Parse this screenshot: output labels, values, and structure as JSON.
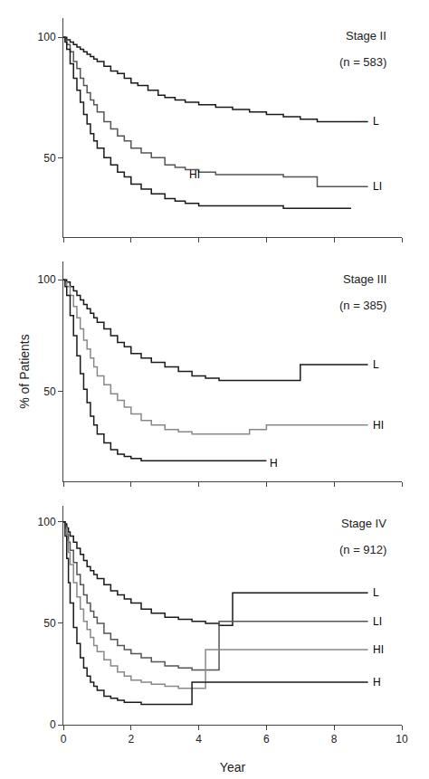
{
  "chart_data": [
    {
      "type": "line",
      "title": "Stage II",
      "subtitle": "(n = 583)",
      "line_style": "step",
      "series": [
        {
          "name": "L",
          "color": "#1a1a1a",
          "x": [
            0,
            0.05,
            0.1,
            0.2,
            0.3,
            0.4,
            0.5,
            0.6,
            0.7,
            0.8,
            0.9,
            1.0,
            1.2,
            1.4,
            1.6,
            1.8,
            2.0,
            2.2,
            2.5,
            2.8,
            3.0,
            3.3,
            3.6,
            4.0,
            4.5,
            5.0,
            5.5,
            6.0,
            6.5,
            7.0,
            7.5,
            8.0,
            8.5,
            9.0
          ],
          "values": [
            100,
            100,
            99,
            98,
            97,
            96,
            95,
            94,
            93,
            92,
            91,
            90,
            88,
            86,
            85,
            83,
            81,
            80,
            78,
            76,
            75,
            74,
            73,
            72,
            71,
            70,
            69,
            68,
            67,
            66,
            65,
            65,
            65,
            65
          ]
        },
        {
          "name": "LI",
          "color": "#555555",
          "x": [
            0,
            0.05,
            0.1,
            0.2,
            0.3,
            0.4,
            0.5,
            0.6,
            0.7,
            0.8,
            0.9,
            1.0,
            1.2,
            1.4,
            1.6,
            1.8,
            2.0,
            2.3,
            2.6,
            3.0,
            3.3,
            3.6,
            4.0,
            4.5,
            5.0,
            5.5,
            6.0,
            6.5,
            7.0,
            7.5,
            8.0,
            8.5,
            9.0
          ],
          "values": [
            100,
            99,
            97,
            94,
            90,
            87,
            83,
            80,
            77,
            74,
            72,
            69,
            65,
            62,
            59,
            57,
            54,
            52,
            50,
            47,
            46,
            45,
            44,
            43,
            43,
            43,
            43,
            42,
            42,
            38,
            38,
            38,
            38
          ]
        },
        {
          "name": "HI",
          "color": "#1a1a1a",
          "x": [
            0,
            0.05,
            0.1,
            0.2,
            0.3,
            0.4,
            0.5,
            0.6,
            0.7,
            0.8,
            0.9,
            1.0,
            1.2,
            1.4,
            1.6,
            1.8,
            2.0,
            2.3,
            2.6,
            3.0,
            3.3,
            3.6,
            4.0,
            4.5,
            5.0,
            5.5,
            6.0,
            6.5,
            7.0,
            7.5,
            8.0,
            8.5
          ],
          "values": [
            100,
            98,
            95,
            89,
            83,
            78,
            73,
            68,
            64,
            60,
            57,
            54,
            50,
            47,
            44,
            42,
            39,
            37,
            35,
            33,
            32,
            31,
            30,
            30,
            30,
            30,
            30,
            29,
            29,
            29,
            29,
            29
          ]
        }
      ],
      "annotations": [
        {
          "text": "L",
          "x": 9.1,
          "y": 65
        },
        {
          "text": "LI",
          "x": 9.1,
          "y": 38
        },
        {
          "text": "HI",
          "x": 3.65,
          "y": 43
        }
      ],
      "xlim": [
        0,
        10
      ],
      "xticks": [
        0,
        2,
        4,
        6,
        8,
        10
      ],
      "ylim": [
        17,
        108
      ],
      "yticks": [
        50,
        100
      ],
      "grid": false,
      "tick_labels": "y"
    },
    {
      "type": "line",
      "title": "Stage III",
      "subtitle": "(n = 385)",
      "line_style": "step",
      "ylabel": "% of Patients",
      "series": [
        {
          "name": "L",
          "color": "#1a1a1a",
          "x": [
            0,
            0.05,
            0.1,
            0.2,
            0.3,
            0.4,
            0.5,
            0.6,
            0.7,
            0.8,
            0.9,
            1.0,
            1.2,
            1.4,
            1.6,
            1.8,
            2.0,
            2.3,
            2.6,
            3.0,
            3.4,
            3.8,
            4.2,
            4.6,
            5.0,
            5.5,
            6.0,
            6.5,
            7.0,
            7.5,
            8.0,
            8.5,
            9.0
          ],
          "values": [
            100,
            100,
            99,
            97,
            95,
            93,
            91,
            89,
            87,
            85,
            83,
            81,
            78,
            75,
            72,
            70,
            67,
            65,
            63,
            61,
            59,
            57,
            56,
            55,
            55,
            55,
            55,
            55,
            62,
            62,
            62,
            62,
            62
          ]
        },
        {
          "name": "HI",
          "color": "#888888",
          "x": [
            0,
            0.05,
            0.1,
            0.2,
            0.3,
            0.4,
            0.5,
            0.6,
            0.7,
            0.8,
            0.9,
            1.0,
            1.2,
            1.4,
            1.6,
            1.8,
            2.0,
            2.3,
            2.6,
            3.0,
            3.4,
            3.8,
            4.2,
            4.6,
            5.0,
            5.5,
            6.0,
            6.5,
            7.0,
            7.5,
            8.0,
            8.5,
            9.0
          ],
          "values": [
            100,
            99,
            97,
            93,
            88,
            83,
            78,
            73,
            69,
            65,
            61,
            57,
            53,
            49,
            46,
            43,
            40,
            37,
            35,
            33,
            32,
            31,
            31,
            31,
            31,
            33,
            35,
            35,
            35,
            35,
            35,
            35,
            35
          ]
        },
        {
          "name": "H",
          "color": "#1a1a1a",
          "x": [
            0,
            0.05,
            0.1,
            0.2,
            0.3,
            0.4,
            0.5,
            0.6,
            0.7,
            0.8,
            0.9,
            1.0,
            1.2,
            1.4,
            1.6,
            1.8,
            2.0,
            2.3,
            2.6,
            3.0,
            3.4,
            3.8,
            4.2,
            4.6,
            5.0,
            5.5,
            6.0
          ],
          "values": [
            100,
            97,
            93,
            84,
            75,
            66,
            58,
            51,
            45,
            39,
            35,
            31,
            27,
            24,
            22,
            21,
            20,
            19,
            19,
            19,
            19,
            19,
            19,
            19,
            19,
            19,
            19
          ]
        }
      ],
      "annotations": [
        {
          "text": "L",
          "x": 9.1,
          "y": 62
        },
        {
          "text": "HI",
          "x": 9.1,
          "y": 35
        },
        {
          "text": "H",
          "x": 6.05,
          "y": 18
        }
      ],
      "xlim": [
        0,
        10
      ],
      "xticks": [
        0,
        2,
        4,
        6,
        8,
        10
      ],
      "ylim": [
        10,
        108
      ],
      "yticks": [
        50,
        100
      ],
      "grid": false,
      "tick_labels": "y"
    },
    {
      "type": "line",
      "title": "Stage IV",
      "subtitle": "(n = 912)",
      "line_style": "step",
      "xlabel": "Year",
      "series": [
        {
          "name": "L",
          "color": "#1a1a1a",
          "x": [
            0,
            0.05,
            0.1,
            0.15,
            0.2,
            0.3,
            0.4,
            0.5,
            0.6,
            0.7,
            0.8,
            0.9,
            1.0,
            1.2,
            1.4,
            1.6,
            1.8,
            2.0,
            2.3,
            2.6,
            3.0,
            3.4,
            3.8,
            4.2,
            4.6,
            5.0,
            5.5,
            6.0,
            6.5,
            7.0,
            7.5,
            8.0,
            8.5,
            9.0
          ],
          "values": [
            100,
            99,
            97,
            95,
            93,
            90,
            87,
            84,
            81,
            78,
            76,
            74,
            72,
            69,
            66,
            64,
            62,
            60,
            57,
            55,
            53,
            52,
            51,
            50,
            49,
            65,
            65,
            65,
            65,
            65,
            65,
            65,
            65,
            65
          ]
        },
        {
          "name": "LI",
          "color": "#555555",
          "x": [
            0,
            0.05,
            0.1,
            0.15,
            0.2,
            0.3,
            0.4,
            0.5,
            0.6,
            0.7,
            0.8,
            0.9,
            1.0,
            1.2,
            1.4,
            1.6,
            1.8,
            2.0,
            2.3,
            2.6,
            3.0,
            3.4,
            3.8,
            4.2,
            4.6,
            5.0,
            5.5,
            6.0,
            6.5,
            7.0,
            7.5,
            8.0,
            8.5,
            9.0
          ],
          "values": [
            100,
            98,
            94,
            90,
            86,
            80,
            74,
            69,
            64,
            60,
            56,
            53,
            50,
            45,
            42,
            39,
            37,
            35,
            33,
            31,
            29,
            28,
            27,
            27,
            51,
            51,
            51,
            51,
            51,
            51,
            51,
            51,
            51,
            51
          ]
        },
        {
          "name": "HI",
          "color": "#888888",
          "x": [
            0,
            0.05,
            0.1,
            0.15,
            0.2,
            0.3,
            0.4,
            0.5,
            0.6,
            0.7,
            0.8,
            0.9,
            1.0,
            1.2,
            1.4,
            1.6,
            1.8,
            2.0,
            2.3,
            2.6,
            3.0,
            3.4,
            3.8,
            4.2,
            4.6,
            5.0,
            5.5,
            6.0,
            6.5,
            7.0,
            7.5,
            8.0,
            8.5,
            9.0
          ],
          "values": [
            100,
            97,
            91,
            85,
            79,
            70,
            63,
            57,
            51,
            47,
            43,
            39,
            36,
            32,
            29,
            26,
            24,
            22,
            21,
            20,
            19,
            18,
            18,
            37,
            37,
            37,
            37,
            37,
            37,
            37,
            37,
            37,
            37,
            37
          ]
        },
        {
          "name": "H",
          "color": "#1a1a1a",
          "x": [
            0,
            0.05,
            0.1,
            0.15,
            0.2,
            0.3,
            0.4,
            0.5,
            0.6,
            0.7,
            0.8,
            0.9,
            1.0,
            1.2,
            1.4,
            1.6,
            1.8,
            2.0,
            2.3,
            2.6,
            3.0,
            3.4,
            3.8,
            4.2,
            4.6,
            5.0,
            5.5,
            6.0,
            6.5,
            7.0,
            7.5,
            8.0,
            8.5,
            9.0
          ],
          "values": [
            100,
            93,
            82,
            70,
            60,
            48,
            40,
            33,
            28,
            24,
            21,
            19,
            17,
            14,
            13,
            12,
            11,
            11,
            10,
            10,
            10,
            10,
            21,
            21,
            21,
            21,
            21,
            21,
            21,
            21,
            21,
            21,
            21,
            21
          ]
        }
      ],
      "annotations": [
        {
          "text": "L",
          "x": 9.1,
          "y": 65
        },
        {
          "text": "LI",
          "x": 9.1,
          "y": 51
        },
        {
          "text": "HI",
          "x": 9.1,
          "y": 37
        },
        {
          "text": "H",
          "x": 9.1,
          "y": 21
        }
      ],
      "xlim": [
        0,
        10
      ],
      "xticks": [
        0,
        2,
        4,
        6,
        8,
        10
      ],
      "ylim": [
        0,
        108
      ],
      "yticks": [
        0,
        50,
        100
      ],
      "grid": false
    }
  ]
}
